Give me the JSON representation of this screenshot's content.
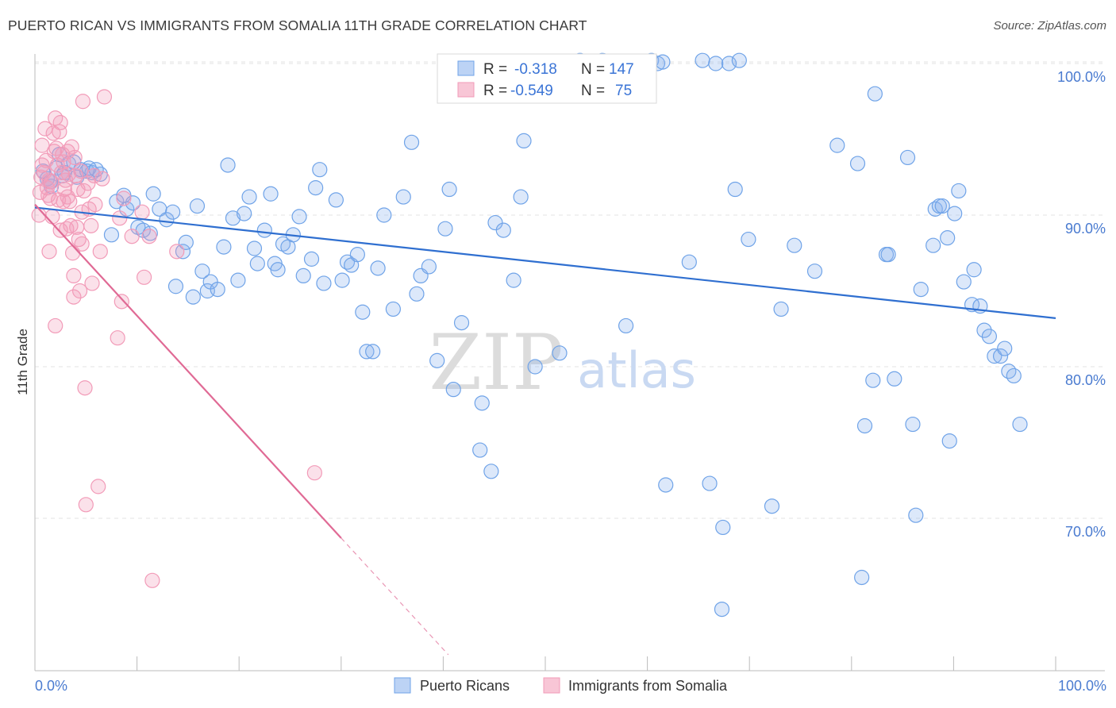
{
  "title": "PUERTO RICAN VS IMMIGRANTS FROM SOMALIA 11TH GRADE CORRELATION CHART",
  "source": "Source: ZipAtlas.com",
  "watermark": {
    "zip": "ZIP",
    "atlas": "atlas"
  },
  "chart_data": {
    "type": "scatter",
    "title": "PUERTO RICAN VS IMMIGRANTS FROM SOMALIA 11TH GRADE CORRELATION CHART",
    "xlabel": "",
    "ylabel": "11th Grade",
    "xlim": [
      0,
      100
    ],
    "ylim": [
      60,
      101.5
    ],
    "x_tick_labels": [
      "0.0%",
      "100.0%"
    ],
    "y_ticks": [
      70,
      80,
      90,
      100
    ],
    "y_tick_labels": [
      "70.0%",
      "80.0%",
      "90.0%",
      "100.0%"
    ],
    "grid": true,
    "legend": {
      "placement": "top-center",
      "entries": [
        {
          "r_label": "R =",
          "r_value": "-0.318",
          "n_label": "N =",
          "n_value": "147"
        },
        {
          "r_label": "R =",
          "r_value": "-0.549",
          "n_label": "N =",
          "n_value": "75"
        }
      ]
    },
    "series": [
      {
        "name": "Puerto Ricans",
        "color": "#6fa3e8",
        "line_color": "#2f6fd0",
        "trend": {
          "x": [
            0,
            100
          ],
          "y": [
            90.5,
            83.2
          ]
        },
        "points": [
          [
            1.2,
            92.4
          ],
          [
            1.6,
            91.9
          ],
          [
            2.1,
            93.1
          ],
          [
            2.4,
            94.0
          ],
          [
            2.9,
            92.8
          ],
          [
            3.3,
            93.4
          ],
          [
            4.1,
            92.5
          ],
          [
            4.5,
            93.0
          ],
          [
            5.1,
            92.9
          ],
          [
            5.6,
            92.8
          ],
          [
            6.4,
            92.7
          ],
          [
            7.5,
            88.7
          ],
          [
            8.0,
            90.9
          ],
          [
            8.7,
            91.3
          ],
          [
            9.0,
            90.4
          ],
          [
            9.6,
            90.8
          ],
          [
            10.1,
            89.2
          ],
          [
            10.6,
            89.0
          ],
          [
            11.3,
            88.8
          ],
          [
            11.6,
            91.4
          ],
          [
            12.2,
            90.4
          ],
          [
            12.9,
            89.7
          ],
          [
            13.5,
            90.2
          ],
          [
            13.8,
            85.3
          ],
          [
            14.5,
            87.6
          ],
          [
            14.8,
            88.2
          ],
          [
            15.5,
            84.6
          ],
          [
            15.9,
            90.6
          ],
          [
            16.4,
            86.3
          ],
          [
            16.9,
            85.0
          ],
          [
            17.2,
            85.6
          ],
          [
            17.9,
            85.1
          ],
          [
            18.5,
            87.9
          ],
          [
            18.9,
            93.3
          ],
          [
            19.4,
            89.8
          ],
          [
            19.9,
            85.7
          ],
          [
            20.5,
            90.1
          ],
          [
            21.0,
            91.2
          ],
          [
            21.5,
            87.8
          ],
          [
            21.8,
            86.8
          ],
          [
            22.5,
            89.0
          ],
          [
            23.1,
            91.4
          ],
          [
            23.5,
            86.8
          ],
          [
            23.8,
            86.4
          ],
          [
            24.3,
            88.1
          ],
          [
            24.8,
            87.9
          ],
          [
            25.3,
            88.7
          ],
          [
            25.9,
            89.9
          ],
          [
            26.3,
            86.0
          ],
          [
            27.1,
            87.1
          ],
          [
            27.5,
            91.8
          ],
          [
            27.9,
            93.0
          ],
          [
            28.3,
            85.5
          ],
          [
            29.5,
            91.0
          ],
          [
            30.1,
            85.7
          ],
          [
            30.6,
            86.9
          ],
          [
            31.0,
            86.7
          ],
          [
            31.6,
            87.4
          ],
          [
            32.1,
            83.6
          ],
          [
            32.5,
            81.0
          ],
          [
            33.1,
            81.0
          ],
          [
            33.6,
            86.5
          ],
          [
            34.2,
            90.0
          ],
          [
            35.1,
            83.8
          ],
          [
            36.1,
            91.2
          ],
          [
            36.9,
            94.8
          ],
          [
            37.4,
            84.8
          ],
          [
            37.8,
            86.0
          ],
          [
            38.6,
            86.6
          ],
          [
            39.4,
            80.4
          ],
          [
            40.2,
            89.1
          ],
          [
            40.6,
            91.7
          ],
          [
            41.0,
            78.5
          ],
          [
            41.8,
            82.9
          ],
          [
            43.8,
            77.6
          ],
          [
            43.6,
            74.5
          ],
          [
            44.7,
            73.1
          ],
          [
            45.1,
            89.5
          ],
          [
            45.9,
            89.0
          ],
          [
            46.9,
            85.7
          ],
          [
            47.6,
            91.2
          ],
          [
            47.9,
            94.9
          ],
          [
            48.6,
            100.0
          ],
          [
            49.0,
            80.0
          ],
          [
            51.4,
            80.9
          ],
          [
            53.4,
            100.2
          ],
          [
            55.1,
            100.0
          ],
          [
            55.6,
            100.2
          ],
          [
            57.9,
            82.7
          ],
          [
            58.0,
            100.0
          ],
          [
            60.4,
            100.2
          ],
          [
            61.0,
            100.0
          ],
          [
            61.5,
            100.1
          ],
          [
            61.8,
            72.2
          ],
          [
            64.1,
            86.9
          ],
          [
            65.4,
            100.2
          ],
          [
            66.1,
            72.3
          ],
          [
            66.7,
            100.0
          ],
          [
            68.0,
            100.0
          ],
          [
            67.4,
            69.4
          ],
          [
            67.3,
            64.0
          ],
          [
            68.6,
            91.7
          ],
          [
            69.0,
            100.2
          ],
          [
            69.9,
            88.4
          ],
          [
            72.2,
            70.8
          ],
          [
            73.1,
            83.8
          ],
          [
            74.4,
            88.0
          ],
          [
            76.4,
            86.3
          ],
          [
            78.6,
            94.6
          ],
          [
            80.6,
            93.4
          ],
          [
            81.0,
            66.1
          ],
          [
            81.3,
            76.1
          ],
          [
            82.1,
            79.1
          ],
          [
            82.3,
            98.0
          ],
          [
            83.4,
            87.4
          ],
          [
            83.6,
            87.4
          ],
          [
            84.2,
            79.2
          ],
          [
            85.5,
            93.8
          ],
          [
            86.0,
            76.2
          ],
          [
            86.3,
            70.2
          ],
          [
            86.8,
            85.1
          ],
          [
            88.0,
            88.0
          ],
          [
            88.2,
            90.4
          ],
          [
            88.6,
            90.6
          ],
          [
            88.9,
            90.6
          ],
          [
            89.4,
            88.5
          ],
          [
            89.6,
            75.1
          ],
          [
            90.1,
            90.1
          ],
          [
            90.5,
            91.6
          ],
          [
            91.0,
            85.6
          ],
          [
            91.8,
            84.1
          ],
          [
            92.0,
            86.4
          ],
          [
            92.6,
            84.0
          ],
          [
            93.0,
            82.4
          ],
          [
            93.5,
            82.0
          ],
          [
            94.0,
            80.7
          ],
          [
            94.6,
            80.7
          ],
          [
            95.0,
            81.2
          ],
          [
            95.4,
            79.7
          ],
          [
            95.9,
            79.4
          ],
          [
            96.5,
            76.2
          ],
          [
            1.5,
            92.2
          ],
          [
            2.7,
            92.6
          ],
          [
            3.8,
            93.5
          ],
          [
            5.3,
            93.1
          ],
          [
            6.0,
            93.0
          ],
          [
            0.8,
            92.9
          ]
        ]
      },
      {
        "name": "Immigrants from Somalia",
        "color": "#f29bb8",
        "line_color": "#e06a95",
        "trend": {
          "x": [
            0,
            30
          ],
          "y": [
            90.7,
            68.7
          ]
        },
        "trend_extension": {
          "x": [
            30,
            40.5
          ],
          "y": [
            68.7,
            61.0
          ]
        },
        "points": [
          [
            0.4,
            90.0
          ],
          [
            0.5,
            91.5
          ],
          [
            0.6,
            92.5
          ],
          [
            0.7,
            93.3
          ],
          [
            0.7,
            94.6
          ],
          [
            0.9,
            92.8
          ],
          [
            1.0,
            95.7
          ],
          [
            1.1,
            93.6
          ],
          [
            1.2,
            91.8
          ],
          [
            1.3,
            91.3
          ],
          [
            1.4,
            87.6
          ],
          [
            1.5,
            91.1
          ],
          [
            1.6,
            92.2
          ],
          [
            1.7,
            89.9
          ],
          [
            1.8,
            95.4
          ],
          [
            1.9,
            94.2
          ],
          [
            2.0,
            82.7
          ],
          [
            2.0,
            96.4
          ],
          [
            2.1,
            94.4
          ],
          [
            2.2,
            93.3
          ],
          [
            2.3,
            91.0
          ],
          [
            2.4,
            95.5
          ],
          [
            2.5,
            89.0
          ],
          [
            2.5,
            96.1
          ],
          [
            2.6,
            92.8
          ],
          [
            2.7,
            94.0
          ],
          [
            2.8,
            90.9
          ],
          [
            2.9,
            91.7
          ],
          [
            3.0,
            92.3
          ],
          [
            3.1,
            89.1
          ],
          [
            3.2,
            94.2
          ],
          [
            3.2,
            91.2
          ],
          [
            3.3,
            92.7
          ],
          [
            3.4,
            90.9
          ],
          [
            3.5,
            89.3
          ],
          [
            3.6,
            94.5
          ],
          [
            3.7,
            87.5
          ],
          [
            3.8,
            86.0
          ],
          [
            3.8,
            84.6
          ],
          [
            3.9,
            93.8
          ],
          [
            4.0,
            92.6
          ],
          [
            4.1,
            89.2
          ],
          [
            4.2,
            91.7
          ],
          [
            4.3,
            88.4
          ],
          [
            4.4,
            85.0
          ],
          [
            4.5,
            92.9
          ],
          [
            4.6,
            88.1
          ],
          [
            4.6,
            90.2
          ],
          [
            4.7,
            97.5
          ],
          [
            4.8,
            91.6
          ],
          [
            4.9,
            78.6
          ],
          [
            5.0,
            70.9
          ],
          [
            5.2,
            92.1
          ],
          [
            5.3,
            90.4
          ],
          [
            5.5,
            89.3
          ],
          [
            5.6,
            85.5
          ],
          [
            5.8,
            92.6
          ],
          [
            5.9,
            90.7
          ],
          [
            6.2,
            72.1
          ],
          [
            6.4,
            87.6
          ],
          [
            6.6,
            92.4
          ],
          [
            6.8,
            97.8
          ],
          [
            8.1,
            81.9
          ],
          [
            8.3,
            89.8
          ],
          [
            8.5,
            84.3
          ],
          [
            8.7,
            91.1
          ],
          [
            9.5,
            88.6
          ],
          [
            10.5,
            90.2
          ],
          [
            10.7,
            85.9
          ],
          [
            11.2,
            88.6
          ],
          [
            11.5,
            65.9
          ],
          [
            13.9,
            87.6
          ],
          [
            27.4,
            73.0
          ],
          [
            1.4,
            92.3
          ],
          [
            2.8,
            93.5
          ]
        ]
      }
    ]
  }
}
